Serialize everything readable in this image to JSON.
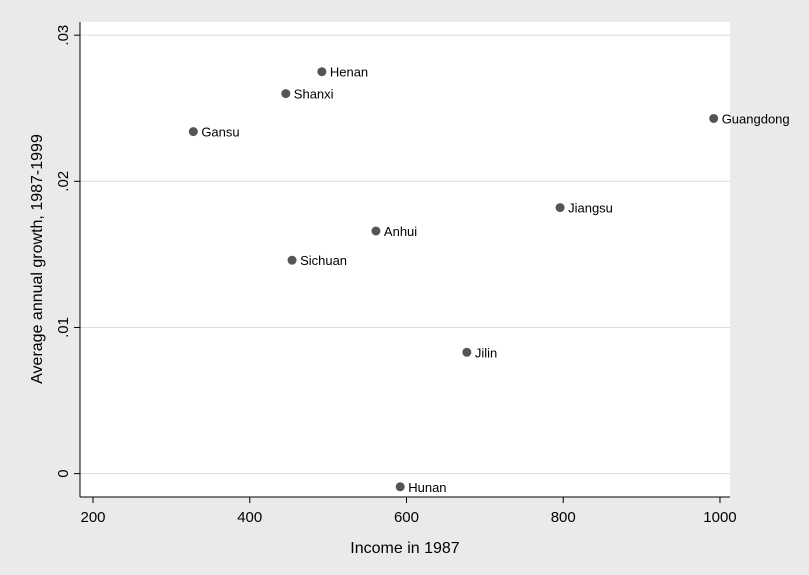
{
  "chart_data": {
    "type": "scatter",
    "x_label": "Income in 1987",
    "y_label": "Average annual growth, 1987-1999",
    "labels": [
      "Henan",
      "Shanxi",
      "Gansu",
      "Guangdong",
      "Jiangsu",
      "Anhui",
      "Sichuan",
      "Jilin",
      "Hunan"
    ],
    "x": [
      492,
      446,
      328,
      992,
      796,
      561,
      454,
      677,
      592
    ],
    "values": [
      0.0275,
      0.026,
      0.0234,
      0.0243,
      0.0182,
      0.0166,
      0.0146,
      0.0083,
      -0.0009
    ],
    "color": "#555555",
    "xlim": [
      183.4,
      1012.8
    ],
    "ylim": [
      -0.0016,
      0.0309
    ],
    "xticks": [
      200,
      400,
      600,
      800,
      1000
    ],
    "yticks": [
      0,
      {
        "value": 0.01,
        "label": ".01"
      },
      {
        "value": 0.02,
        "label": ".02"
      },
      {
        "value": 0.03,
        "label": ".03"
      }
    ],
    "grid": true
  }
}
